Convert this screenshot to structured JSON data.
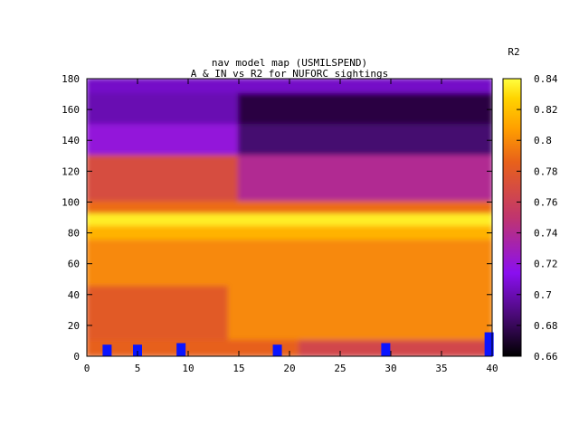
{
  "chart_data": {
    "type": "heatmap",
    "title": "nav model map (USMILSPEND)",
    "subtitle": "A & IN vs R2 for NUFORC sightings",
    "xlabel": "",
    "ylabel": "",
    "xlim": [
      0,
      40
    ],
    "ylim": [
      0,
      180
    ],
    "x_ticks": [
      0,
      5,
      10,
      15,
      20,
      25,
      30,
      35,
      40
    ],
    "y_ticks": [
      0,
      20,
      40,
      60,
      80,
      100,
      120,
      140,
      160,
      180
    ],
    "colorbar": {
      "label": "R2",
      "range": [
        0.66,
        0.84
      ],
      "ticks": [
        0.66,
        0.68,
        0.7,
        0.72,
        0.74,
        0.76,
        0.78,
        0.8,
        0.82,
        0.84
      ],
      "palette": [
        "#000000",
        "#4b0a78",
        "#8a0ff0",
        "#c0356e",
        "#e8611a",
        "#ff9f00",
        "#ffd400",
        "#ffff40"
      ]
    },
    "grid": false,
    "regions": [
      {
        "y_from": 170,
        "y_to": 180,
        "x_from": 0,
        "x_to": 40,
        "r2": 0.705
      },
      {
        "y_from": 150,
        "y_to": 170,
        "x_from": 0,
        "x_to": 15,
        "r2": 0.7
      },
      {
        "y_from": 150,
        "y_to": 170,
        "x_from": 15,
        "x_to": 40,
        "r2": 0.675
      },
      {
        "y_from": 130,
        "y_to": 150,
        "x_from": 0,
        "x_to": 15,
        "r2": 0.72
      },
      {
        "y_from": 130,
        "y_to": 150,
        "x_from": 15,
        "x_to": 40,
        "r2": 0.685
      },
      {
        "y_from": 100,
        "y_to": 130,
        "x_from": 0,
        "x_to": 15,
        "r2": 0.77
      },
      {
        "y_from": 100,
        "y_to": 130,
        "x_from": 15,
        "x_to": 40,
        "r2": 0.74
      },
      {
        "y_from": 92,
        "y_to": 100,
        "x_from": 0,
        "x_to": 40,
        "r2": 0.79
      },
      {
        "y_from": 84,
        "y_to": 92,
        "x_from": 0,
        "x_to": 40,
        "r2": 0.835
      },
      {
        "y_from": 75,
        "y_to": 84,
        "x_from": 0,
        "x_to": 40,
        "r2": 0.815
      },
      {
        "y_from": 45,
        "y_to": 75,
        "x_from": 0,
        "x_to": 40,
        "r2": 0.8
      },
      {
        "y_from": 10,
        "y_to": 45,
        "x_from": 0,
        "x_to": 14,
        "r2": 0.78
      },
      {
        "y_from": 10,
        "y_to": 45,
        "x_from": 14,
        "x_to": 40,
        "r2": 0.8
      },
      {
        "y_from": 0,
        "y_to": 10,
        "x_from": 0,
        "x_to": 21,
        "r2": 0.785
      },
      {
        "y_from": 0,
        "y_to": 10,
        "x_from": 21,
        "x_to": 40,
        "r2": 0.765
      }
    ],
    "markers": [
      {
        "x": 2,
        "y": 4
      },
      {
        "x": 5,
        "y": 4
      },
      {
        "x": 9.3,
        "y": 5
      },
      {
        "x": 18.8,
        "y": 4
      },
      {
        "x": 29.5,
        "y": 5
      },
      {
        "x": 39.7,
        "y": 12
      }
    ]
  }
}
